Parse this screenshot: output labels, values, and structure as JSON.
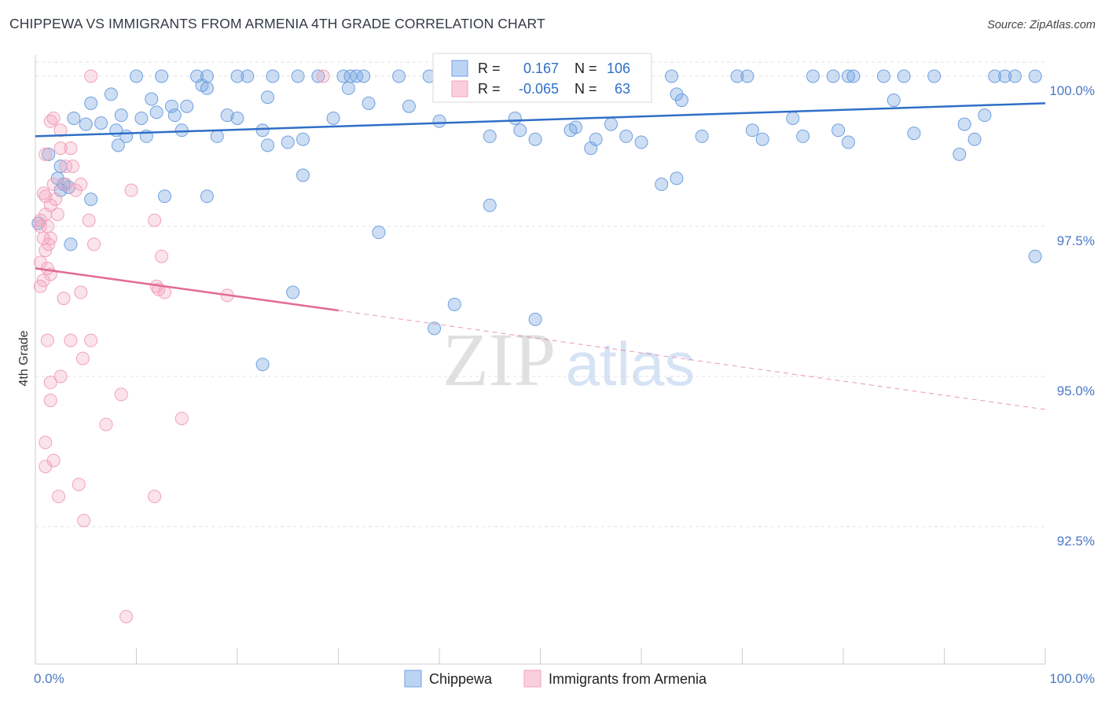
{
  "header": {
    "title": "CHIPPEWA VS IMMIGRANTS FROM ARMENIA 4TH GRADE CORRELATION CHART",
    "source": "Source: ZipAtlas.com"
  },
  "watermark": {
    "zip": "ZIP",
    "atlas": "atlas"
  },
  "legend_box": {
    "r_label": "R =",
    "n_label": "N =",
    "rows": [
      {
        "r": "0.167",
        "n": "106"
      },
      {
        "r": "-0.065",
        "n": "63"
      }
    ]
  },
  "chart_data": {
    "type": "scatter",
    "title": "CHIPPEWA VS IMMIGRANTS FROM ARMENIA 4TH GRADE CORRELATION CHART",
    "xlabel": "",
    "ylabel": "4th Grade",
    "xlim": [
      0,
      100
    ],
    "ylim": [
      90.0,
      100.4
    ],
    "x_tick_labels": [
      "0.0%",
      "100.0%"
    ],
    "y_ticks": [
      92.5,
      95.0,
      97.5,
      100.0
    ],
    "y_tick_labels": [
      "92.5%",
      "95.0%",
      "97.5%",
      "100.0%"
    ],
    "grid": true,
    "legend_position": "bottom-center",
    "colors": {
      "Chippewa": "#6fa0e0",
      "Immigrants from Armenia": "#f2a1bb",
      "blue_line": "#2f6fc7",
      "pink_line": "#e36a93",
      "accent_text": "#2f6fc7"
    },
    "series": [
      {
        "name": "Chippewa",
        "r": 0.167,
        "n": 106,
        "trend": {
          "x": [
            0,
            100
          ],
          "y": [
            99.0,
            99.55
          ]
        },
        "points": [
          [
            10,
            100
          ],
          [
            12.5,
            100
          ],
          [
            16,
            100
          ],
          [
            17,
            100
          ],
          [
            20,
            100
          ],
          [
            21,
            100
          ],
          [
            23.5,
            100
          ],
          [
            26,
            100
          ],
          [
            28,
            100
          ],
          [
            30.5,
            100
          ],
          [
            31.2,
            100
          ],
          [
            31.8,
            100
          ],
          [
            32.5,
            100
          ],
          [
            36,
            100
          ],
          [
            39,
            100
          ],
          [
            41.5,
            100
          ],
          [
            46.5,
            100
          ],
          [
            47,
            100
          ],
          [
            63,
            100
          ],
          [
            69.5,
            100
          ],
          [
            70.5,
            100
          ],
          [
            77,
            100
          ],
          [
            79,
            100
          ],
          [
            80.5,
            100
          ],
          [
            81,
            100
          ],
          [
            84,
            100
          ],
          [
            86,
            100
          ],
          [
            89,
            100
          ],
          [
            95,
            100
          ],
          [
            96,
            100
          ],
          [
            97,
            100
          ],
          [
            99,
            100
          ],
          [
            16.5,
            99.85
          ],
          [
            17,
            99.8
          ],
          [
            7.5,
            99.7
          ],
          [
            11.5,
            99.62
          ],
          [
            13.5,
            99.5
          ],
          [
            5.5,
            99.55
          ],
          [
            8.5,
            99.35
          ],
          [
            10.5,
            99.3
          ],
          [
            3.8,
            99.3
          ],
          [
            5,
            99.2
          ],
          [
            6.5,
            99.22
          ],
          [
            8,
            99.1
          ],
          [
            11,
            99.0
          ],
          [
            1.3,
            98.7
          ],
          [
            2.5,
            98.5
          ],
          [
            2.2,
            98.3
          ],
          [
            2.8,
            98.2
          ],
          [
            12,
            99.4
          ],
          [
            13.8,
            99.35
          ],
          [
            15,
            99.5
          ],
          [
            14.5,
            99.1
          ],
          [
            19,
            99.35
          ],
          [
            20,
            99.3
          ],
          [
            18,
            99.0
          ],
          [
            22.5,
            99.1
          ],
          [
            23,
            98.85
          ],
          [
            25,
            98.9
          ],
          [
            26.5,
            98.95
          ],
          [
            26.5,
            98.35
          ],
          [
            29.5,
            99.3
          ],
          [
            31,
            99.8
          ],
          [
            37,
            99.5
          ],
          [
            45,
            99.0
          ],
          [
            47.5,
            99.3
          ],
          [
            48,
            99.1
          ],
          [
            49.5,
            98.95
          ],
          [
            53,
            99.1
          ],
          [
            55,
            98.8
          ],
          [
            57,
            99.2
          ],
          [
            63.5,
            99.7
          ],
          [
            64,
            99.6
          ],
          [
            62,
            98.2
          ],
          [
            63.5,
            98.3
          ],
          [
            75,
            99.3
          ],
          [
            76,
            99.0
          ],
          [
            79.5,
            99.1
          ],
          [
            80.5,
            98.9
          ],
          [
            87,
            99.05
          ],
          [
            91.5,
            98.7
          ],
          [
            92,
            99.2
          ],
          [
            93,
            98.95
          ],
          [
            94,
            99.35
          ],
          [
            8.2,
            98.85
          ],
          [
            12.8,
            98.0
          ],
          [
            3.5,
            97.2
          ],
          [
            5.5,
            97.95
          ],
          [
            17,
            98.0
          ],
          [
            25.5,
            96.4
          ],
          [
            34,
            97.4
          ],
          [
            45,
            97.85
          ],
          [
            41.5,
            96.2
          ],
          [
            49.5,
            95.95
          ],
          [
            22.5,
            95.2
          ],
          [
            39.5,
            95.8
          ],
          [
            99,
            97.0
          ],
          [
            60,
            98.9
          ],
          [
            55.5,
            98.95
          ],
          [
            58.5,
            99.0
          ],
          [
            23,
            99.65
          ],
          [
            33,
            99.55
          ],
          [
            40,
            99.25
          ],
          [
            53.5,
            99.15
          ],
          [
            66,
            99.0
          ],
          [
            71,
            99.1
          ],
          [
            72,
            98.95
          ],
          [
            85,
            99.6
          ],
          [
            3.3,
            98.15
          ],
          [
            2.5,
            98.1
          ],
          [
            9,
            99.0
          ],
          [
            0.3,
            97.55
          ]
        ]
      },
      {
        "name": "Immigrants from Armenia",
        "r": -0.065,
        "n": 63,
        "trend": {
          "x": [
            0,
            30
          ],
          "y": [
            96.8,
            96.1
          ],
          "dashed_to": [
            100,
            94.45
          ]
        },
        "points": [
          [
            5.5,
            100
          ],
          [
            28.5,
            100
          ],
          [
            1.5,
            99.25
          ],
          [
            1.8,
            99.3
          ],
          [
            2.5,
            99.1
          ],
          [
            1,
            98.7
          ],
          [
            2.5,
            98.8
          ],
          [
            3.5,
            98.8
          ],
          [
            3,
            98.5
          ],
          [
            3.7,
            98.5
          ],
          [
            1.8,
            98.2
          ],
          [
            3.0,
            98.2
          ],
          [
            4,
            98.1
          ],
          [
            4.5,
            98.2
          ],
          [
            0.8,
            98.05
          ],
          [
            1.0,
            98.0
          ],
          [
            1.5,
            97.85
          ],
          [
            2,
            97.95
          ],
          [
            2.2,
            97.7
          ],
          [
            1.0,
            97.7
          ],
          [
            0.5,
            97.6
          ],
          [
            1.2,
            97.5
          ],
          [
            0.5,
            97.5
          ],
          [
            0.8,
            97.3
          ],
          [
            1.5,
            97.3
          ],
          [
            1.3,
            97.2
          ],
          [
            1.0,
            97.1
          ],
          [
            0.5,
            96.9
          ],
          [
            1.2,
            96.8
          ],
          [
            1.5,
            96.7
          ],
          [
            0.8,
            96.6
          ],
          [
            0.5,
            96.5
          ],
          [
            5.3,
            97.6
          ],
          [
            5.8,
            97.2
          ],
          [
            9.5,
            98.1
          ],
          [
            11.8,
            97.6
          ],
          [
            12.5,
            97.0
          ],
          [
            12.0,
            96.5
          ],
          [
            12.8,
            96.4
          ],
          [
            12.2,
            96.45
          ],
          [
            19,
            96.35
          ],
          [
            2.8,
            96.3
          ],
          [
            4.5,
            96.4
          ],
          [
            1.2,
            95.6
          ],
          [
            3.5,
            95.6
          ],
          [
            5.5,
            95.6
          ],
          [
            4.7,
            95.3
          ],
          [
            2.5,
            95.0
          ],
          [
            1.5,
            94.9
          ],
          [
            1.5,
            94.6
          ],
          [
            8.5,
            94.7
          ],
          [
            14.5,
            94.3
          ],
          [
            7,
            94.2
          ],
          [
            1,
            93.9
          ],
          [
            1.8,
            93.6
          ],
          [
            1.0,
            93.5
          ],
          [
            4.3,
            93.2
          ],
          [
            2.3,
            93.0
          ],
          [
            11.8,
            93.0
          ],
          [
            4.8,
            92.6
          ],
          [
            9,
            91.0
          ]
        ]
      }
    ]
  },
  "legend": {
    "items": [
      {
        "label": "Chippewa"
      },
      {
        "label": "Immigrants from Armenia"
      }
    ]
  }
}
